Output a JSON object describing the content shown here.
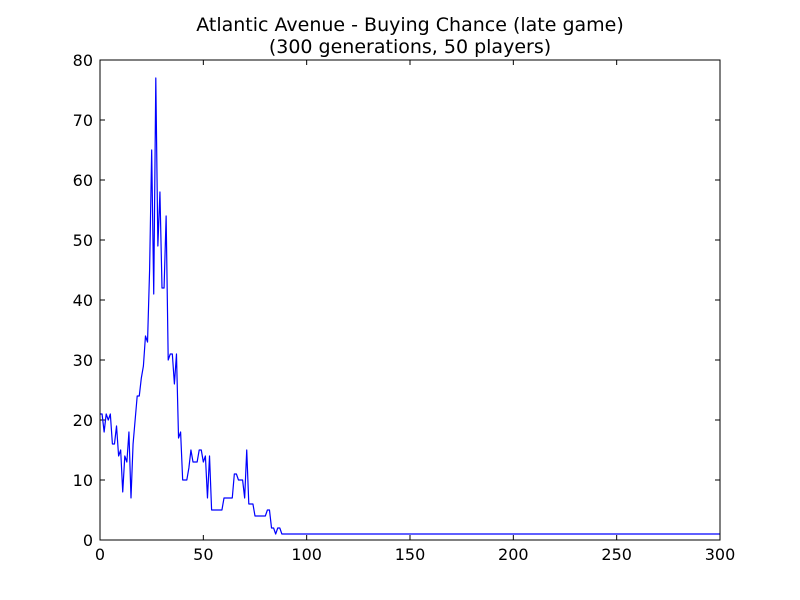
{
  "chart_data": {
    "type": "line",
    "title": "Atlantic Avenue - Buying Chance (late game)",
    "subtitle": "(300 generations, 50 players)",
    "xlabel": "",
    "ylabel": "",
    "xlim": [
      0,
      300
    ],
    "ylim": [
      0,
      80
    ],
    "xticks": [
      0,
      50,
      100,
      150,
      200,
      250,
      300
    ],
    "yticks": [
      0,
      10,
      20,
      30,
      40,
      50,
      60,
      70,
      80
    ],
    "grid": false,
    "line_color": "#0000ff",
    "series": [
      {
        "x": [
          0,
          1,
          2,
          3,
          4,
          5,
          6,
          7,
          8,
          9,
          10,
          11,
          12,
          13,
          14,
          15,
          16,
          17,
          18,
          19,
          20,
          21,
          22,
          23,
          24,
          25,
          26,
          27,
          28,
          29,
          30,
          31,
          32,
          33,
          34,
          35,
          36,
          37,
          38,
          39,
          40,
          41,
          42,
          43,
          44,
          45,
          46,
          47,
          48,
          49,
          50,
          51,
          52,
          53,
          54,
          55,
          56,
          57,
          58,
          59,
          60,
          61,
          62,
          63,
          64,
          65,
          66,
          67,
          68,
          69,
          70,
          71,
          72,
          73,
          74,
          75,
          76,
          77,
          78,
          79,
          80,
          81,
          82,
          83,
          84,
          85,
          86,
          87,
          88,
          300
        ],
        "y": [
          21,
          21,
          18,
          21,
          20,
          21,
          16,
          16,
          19,
          14,
          15,
          8,
          14,
          13,
          18,
          7,
          16,
          20,
          24,
          24,
          27,
          29,
          34,
          33,
          45,
          65,
          41,
          77,
          49,
          58,
          42,
          42,
          54,
          30,
          31,
          31,
          26,
          31,
          17,
          18,
          10,
          10,
          10,
          12,
          15,
          13,
          13,
          13,
          15,
          15,
          13,
          14,
          7,
          14,
          5,
          5,
          5,
          5,
          5,
          5,
          7,
          7,
          7,
          7,
          7,
          11,
          11,
          10,
          10,
          10,
          7,
          15,
          6,
          6,
          6,
          4,
          4,
          4,
          4,
          4,
          4,
          5,
          5,
          2,
          2,
          1,
          2,
          2,
          1,
          1
        ]
      }
    ]
  }
}
